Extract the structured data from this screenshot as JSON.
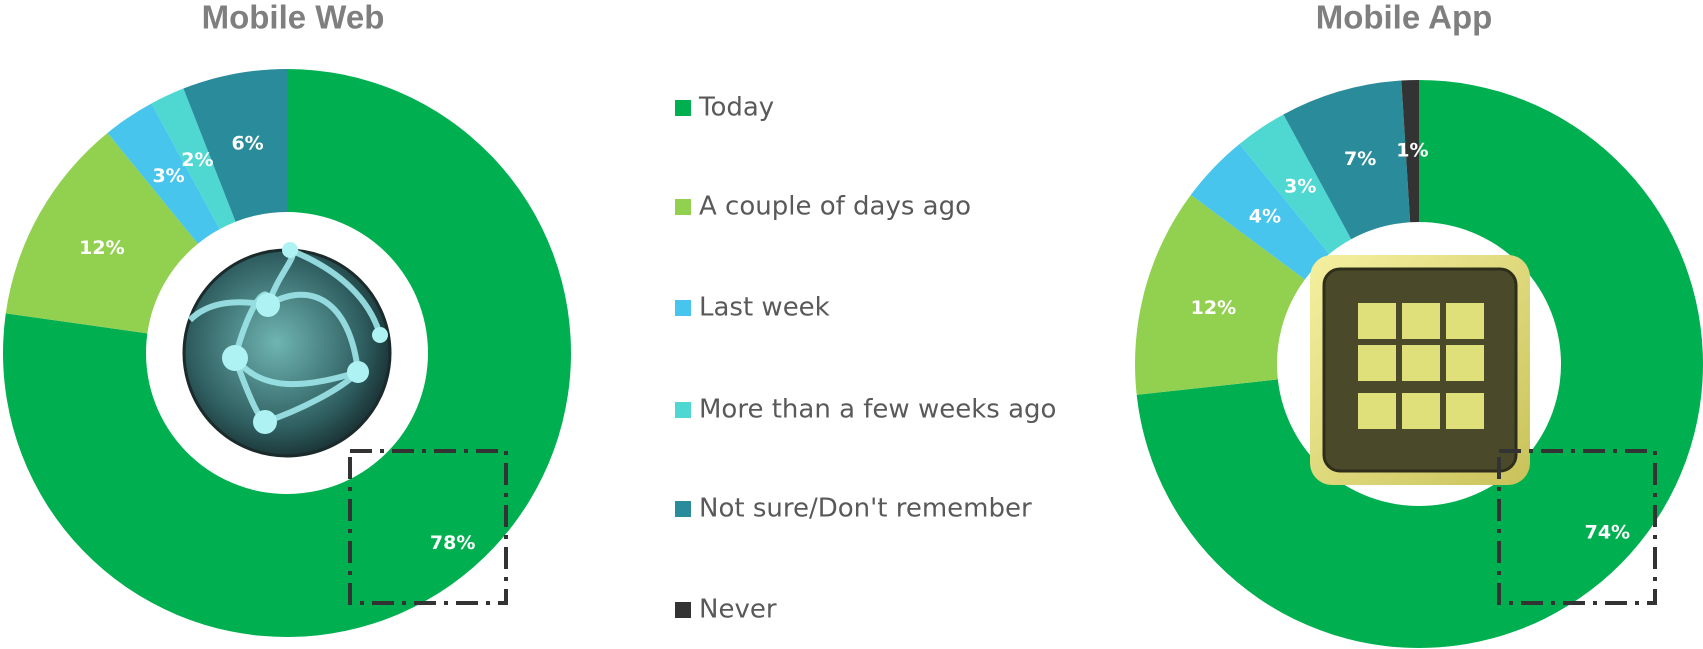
{
  "chart_data": {
    "type": "donut",
    "categories": [
      "Today",
      "A couple of days ago",
      "Last week",
      "More than a few weeks ago",
      "Not sure/Don't remember",
      "Never"
    ],
    "colors": [
      "#00b050",
      "#92d050",
      "#47c5ed",
      "#4fd8d2",
      "#2a8b9b",
      "#333333"
    ],
    "series": [
      {
        "name": "Mobile Web",
        "values": [
          78,
          12,
          3,
          2,
          6,
          null
        ],
        "value_labels": [
          "78%",
          "12%",
          "3%",
          "2%",
          "6%",
          null
        ]
      },
      {
        "name": "Mobile App",
        "values": [
          74,
          12,
          4,
          3,
          7,
          1
        ],
        "value_labels": [
          "74%",
          "12%",
          "4%",
          "3%",
          "7%",
          "1%"
        ]
      }
    ]
  }
}
